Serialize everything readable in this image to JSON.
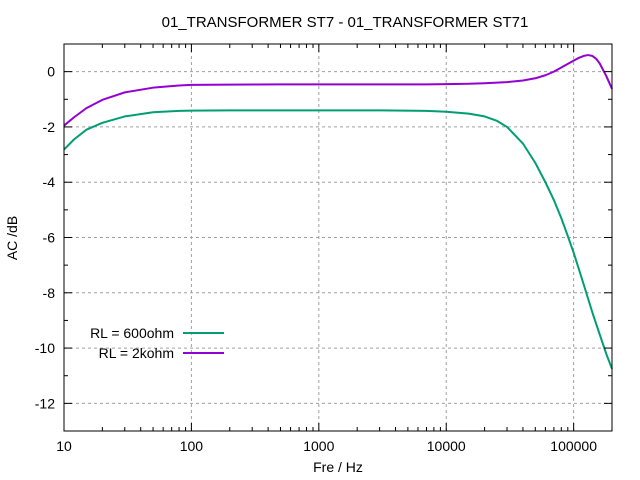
{
  "chart_data": {
    "type": "line",
    "title": "01_TRANSFORMER ST7 - 01_TRANSFORMER ST71",
    "xlabel": "Fre / Hz",
    "ylabel": "AC /dB",
    "x_scale": "log",
    "xlim": [
      10,
      200000
    ],
    "ylim": [
      -13,
      1
    ],
    "x_ticks": [
      10,
      100,
      1000,
      10000,
      100000
    ],
    "x_tick_labels": [
      "10",
      "100",
      "1000",
      "10000",
      "100000"
    ],
    "y_ticks": [
      0,
      -2,
      -4,
      -6,
      -8,
      -10,
      -12
    ],
    "y_tick_labels": [
      "0",
      "-2",
      "-4",
      "-6",
      "-8",
      "-10",
      "-12"
    ],
    "grid": true,
    "legend_position": "bottom-left",
    "series": [
      {
        "name": "RL = 600ohm",
        "color": "#009e73",
        "points": [
          [
            10,
            -2.82
          ],
          [
            12,
            -2.45
          ],
          [
            15,
            -2.1
          ],
          [
            20,
            -1.85
          ],
          [
            30,
            -1.62
          ],
          [
            50,
            -1.47
          ],
          [
            80,
            -1.42
          ],
          [
            100,
            -1.41
          ],
          [
            200,
            -1.4
          ],
          [
            500,
            -1.4
          ],
          [
            1000,
            -1.4
          ],
          [
            3000,
            -1.4
          ],
          [
            7000,
            -1.42
          ],
          [
            10000,
            -1.45
          ],
          [
            15000,
            -1.52
          ],
          [
            20000,
            -1.62
          ],
          [
            25000,
            -1.78
          ],
          [
            30000,
            -2.0
          ],
          [
            40000,
            -2.6
          ],
          [
            50000,
            -3.3
          ],
          [
            60000,
            -4.0
          ],
          [
            70000,
            -4.65
          ],
          [
            80000,
            -5.3
          ],
          [
            90000,
            -5.95
          ],
          [
            100000,
            -6.55
          ],
          [
            120000,
            -7.7
          ],
          [
            140000,
            -8.7
          ],
          [
            160000,
            -9.5
          ],
          [
            180000,
            -10.2
          ],
          [
            200000,
            -10.75
          ]
        ]
      },
      {
        "name": "RL = 2kohm",
        "color": "#9400d3",
        "points": [
          [
            10,
            -1.95
          ],
          [
            12,
            -1.65
          ],
          [
            15,
            -1.32
          ],
          [
            20,
            -1.02
          ],
          [
            30,
            -0.75
          ],
          [
            50,
            -0.58
          ],
          [
            80,
            -0.5
          ],
          [
            100,
            -0.48
          ],
          [
            200,
            -0.47
          ],
          [
            500,
            -0.46
          ],
          [
            1000,
            -0.46
          ],
          [
            3000,
            -0.46
          ],
          [
            7000,
            -0.46
          ],
          [
            10000,
            -0.45
          ],
          [
            15000,
            -0.44
          ],
          [
            20000,
            -0.42
          ],
          [
            30000,
            -0.38
          ],
          [
            40000,
            -0.32
          ],
          [
            50000,
            -0.24
          ],
          [
            60000,
            -0.13
          ],
          [
            70000,
            0.0
          ],
          [
            80000,
            0.15
          ],
          [
            90000,
            0.28
          ],
          [
            100000,
            0.4
          ],
          [
            110000,
            0.5
          ],
          [
            120000,
            0.57
          ],
          [
            130000,
            0.6
          ],
          [
            140000,
            0.57
          ],
          [
            150000,
            0.47
          ],
          [
            160000,
            0.3
          ],
          [
            180000,
            -0.15
          ],
          [
            200000,
            -0.62
          ]
        ]
      }
    ]
  }
}
